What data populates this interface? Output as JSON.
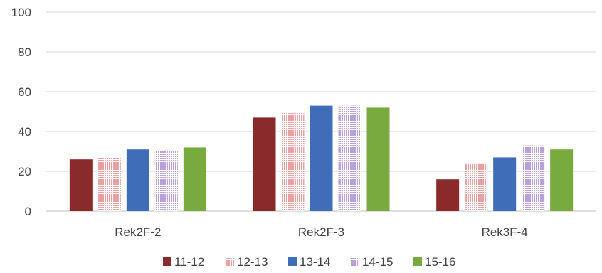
{
  "chart_data": {
    "type": "bar",
    "categories": [
      "Rek2F-2",
      "Rek2F-3",
      "Rek3F-4"
    ],
    "series": [
      {
        "name": "11-12",
        "values": [
          26,
          47,
          16
        ],
        "color": "#8b2a2a",
        "pattern": "solid"
      },
      {
        "name": "12-13",
        "values": [
          27,
          50,
          24
        ],
        "color": "#e8a0a0",
        "pattern": "dotted"
      },
      {
        "name": "13-14",
        "values": [
          31,
          53,
          27
        ],
        "color": "#3f6db8",
        "pattern": "solid"
      },
      {
        "name": "14-15",
        "values": [
          30,
          53,
          33
        ],
        "color": "#b9a0d8",
        "pattern": "dotted"
      },
      {
        "name": "15-16",
        "values": [
          32,
          52,
          31
        ],
        "color": "#78aa3f",
        "pattern": "solid"
      }
    ],
    "yticks": [
      "0",
      "20",
      "40",
      "60",
      "80",
      "100"
    ],
    "ylim": [
      0,
      100
    ],
    "title": "",
    "xlabel": "",
    "ylabel": "",
    "grid": true,
    "legend": "bottom"
  }
}
